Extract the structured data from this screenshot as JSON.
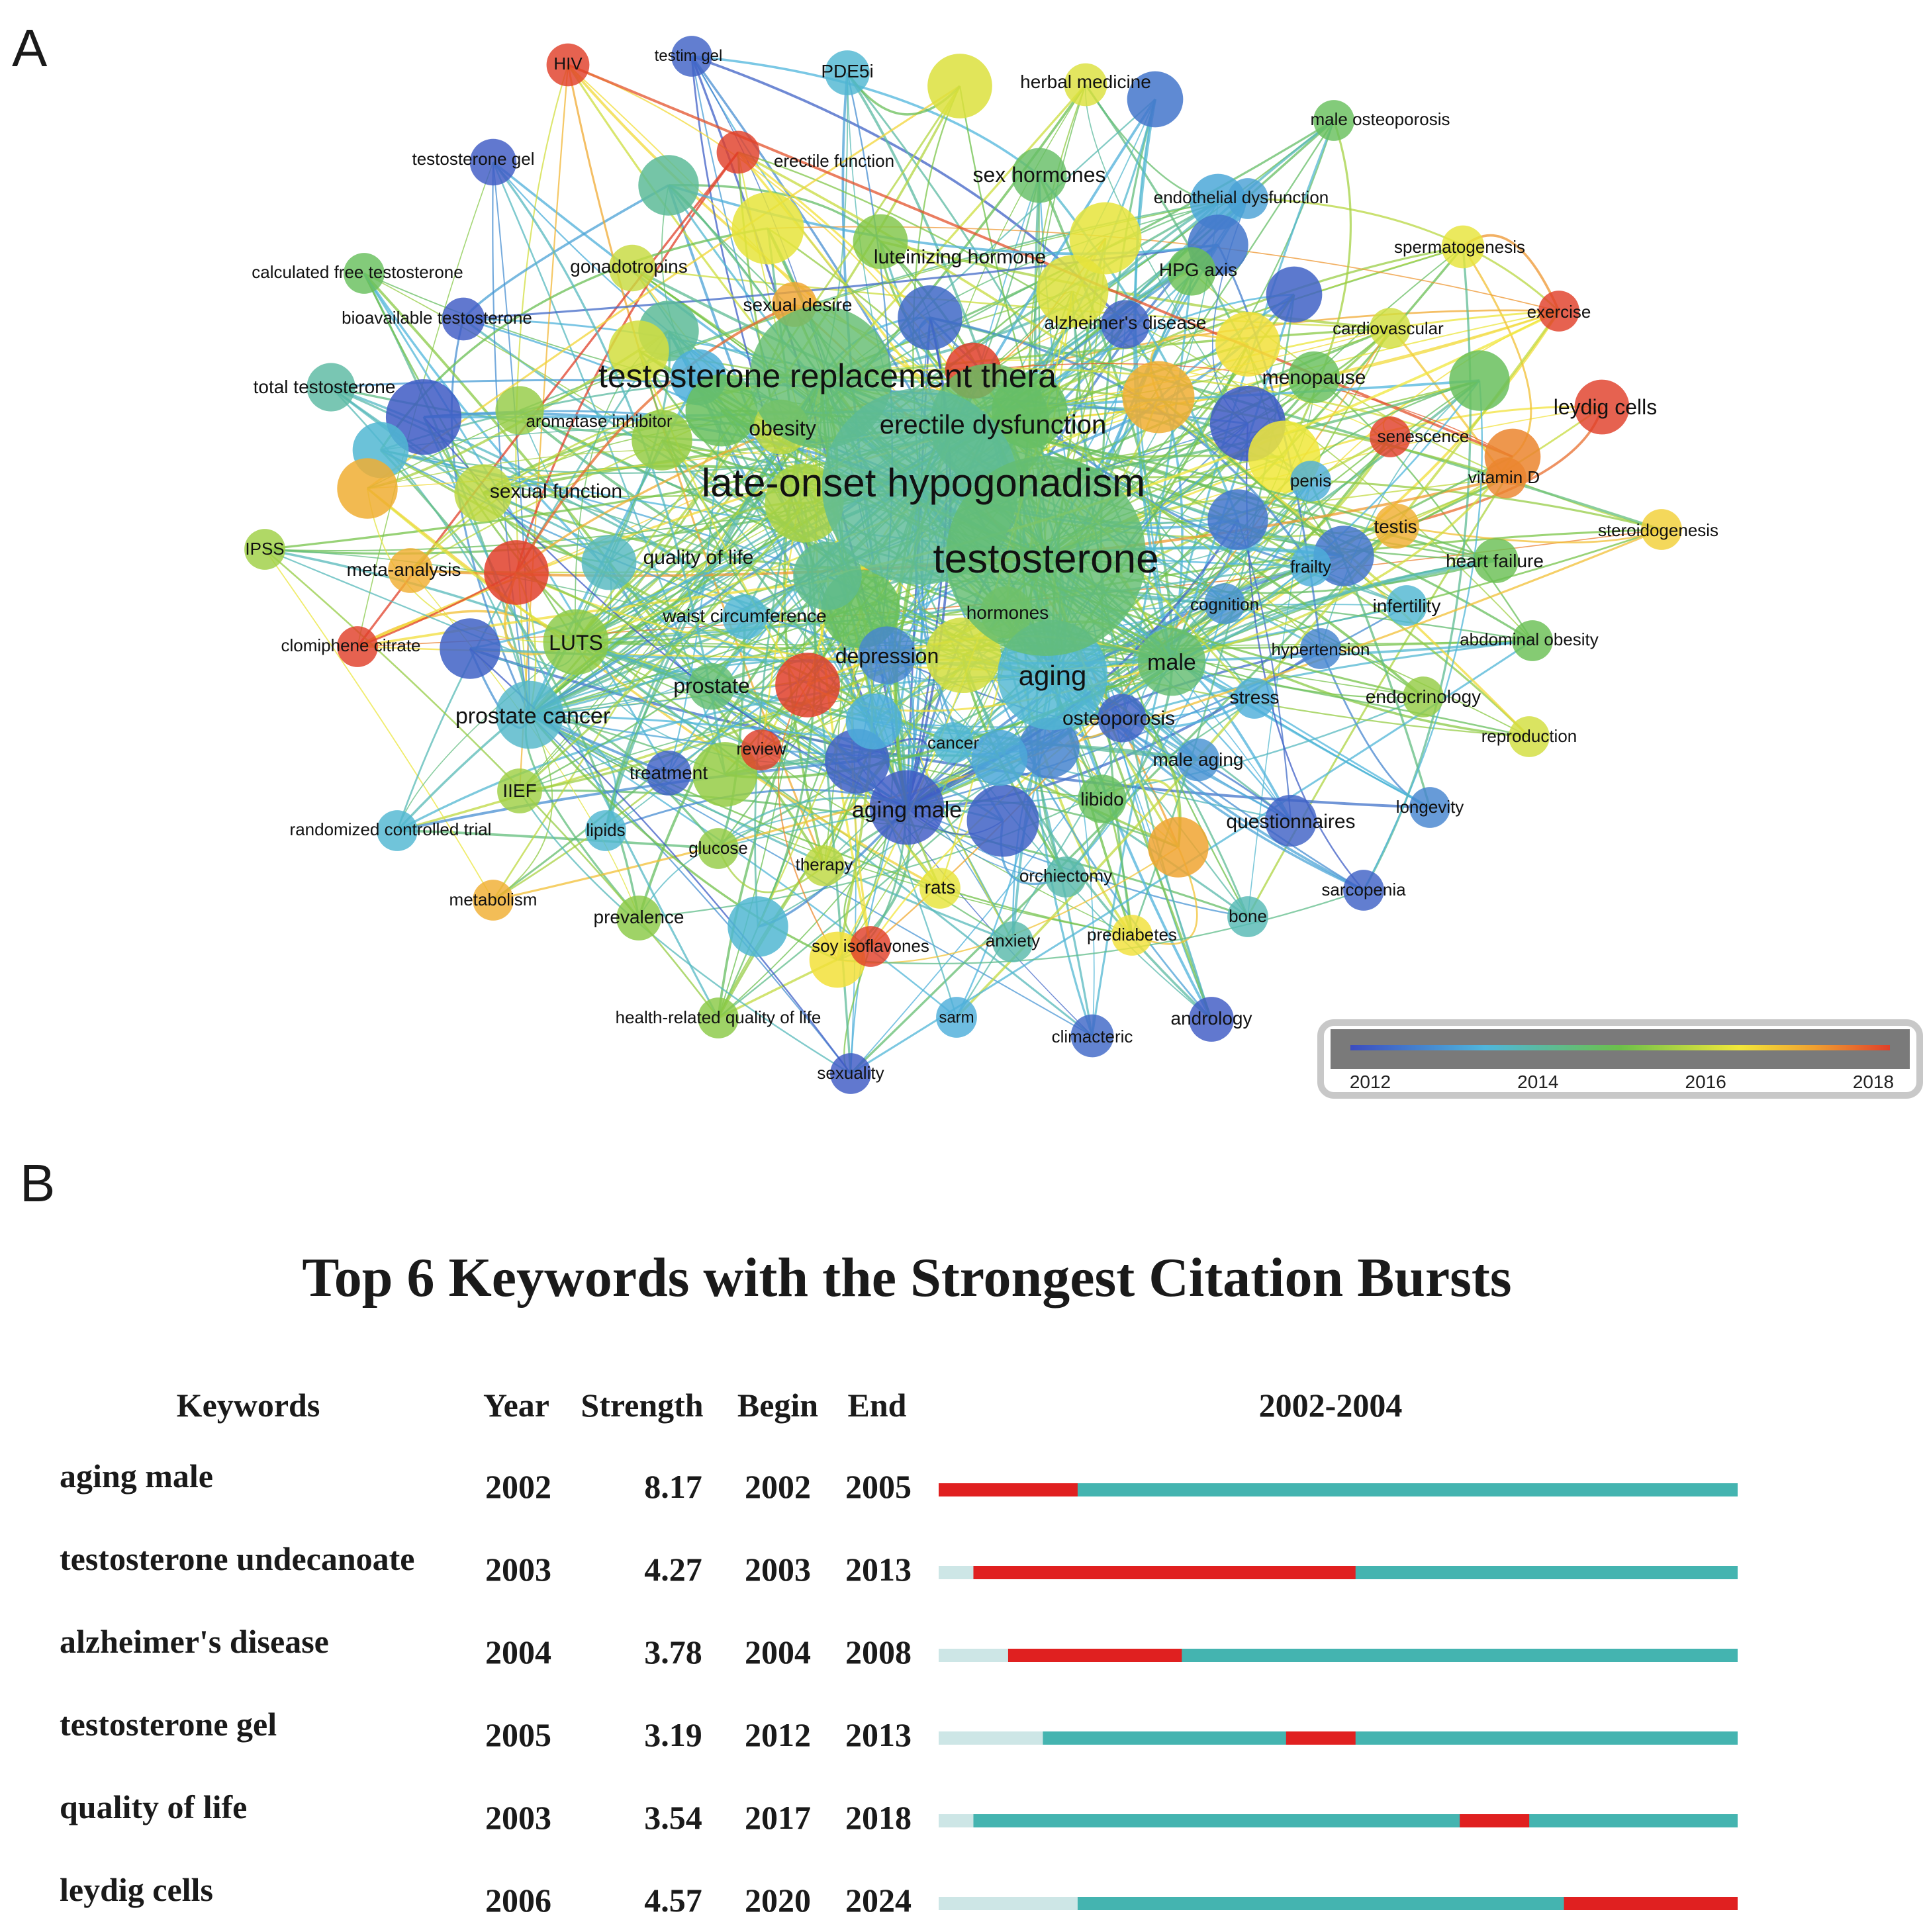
{
  "panels": {
    "a": "A",
    "b": "B"
  },
  "chart_data": [
    {
      "type": "network",
      "overlay": {
        "colorbar": {
          "ticks": [
            "2012",
            "2014",
            "2016",
            "2018"
          ],
          "colors": [
            "#3b4cc0",
            "#4fb6dc",
            "#6cc04a",
            "#f2e83a",
            "#f0a030",
            "#e0402a"
          ]
        }
      },
      "nodes": [
        {
          "label": "testosterone",
          "year": 2014.6,
          "weight": 100
        },
        {
          "label": "late-onset hypogonadism",
          "year": 2014.2,
          "weight": 96
        },
        {
          "label": "testosterone replacement thera",
          "year": 2014.6,
          "weight": 70
        },
        {
          "label": "erectile dysfunction",
          "year": 2014.7,
          "weight": 48
        },
        {
          "label": "aging",
          "year": 2013.6,
          "weight": 40
        },
        {
          "label": "male",
          "year": 2014.6,
          "weight": 26
        },
        {
          "label": "prostate cancer",
          "year": 2013.7,
          "weight": 26
        },
        {
          "label": "LUTS",
          "year": 2015.3,
          "weight": 24
        },
        {
          "label": "aging male",
          "year": 2012.2,
          "weight": 32
        },
        {
          "label": "depression",
          "year": 2012.8,
          "weight": 18
        },
        {
          "label": "obesity",
          "year": 2015.8,
          "weight": 16
        },
        {
          "label": "quality of life",
          "year": 2013.8,
          "weight": 16
        },
        {
          "label": "sexual function",
          "year": 2015.8,
          "weight": 18
        },
        {
          "label": "hormones",
          "year": 2015.5,
          "weight": 14
        },
        {
          "label": "sex hormones",
          "year": 2014.7,
          "weight": 16
        },
        {
          "label": "luteinizing hormone",
          "year": 2015.2,
          "weight": 16
        },
        {
          "label": "menopause",
          "year": 2014.8,
          "weight": 14
        },
        {
          "label": "leydig cells",
          "year": 2018.2,
          "weight": 16
        },
        {
          "label": "HPG axis",
          "year": 2014.9,
          "weight": 12
        },
        {
          "label": "alzheimer's disease",
          "year": 2012.3,
          "weight": 12
        },
        {
          "label": "gonadotropins",
          "year": 2015.9,
          "weight": 11
        },
        {
          "label": "sexual desire",
          "year": 2017.1,
          "weight": 10
        },
        {
          "label": "aromatase inhibitor",
          "year": 2015.4,
          "weight": 12
        },
        {
          "label": "total testosterone",
          "year": 2014.1,
          "weight": 12
        },
        {
          "label": "bioavailable testosterone",
          "year": 2012.2,
          "weight": 9
        },
        {
          "label": "calculated free testosterone",
          "year": 2014.8,
          "weight": 8
        },
        {
          "label": "testosterone gel",
          "year": 2012.2,
          "weight": 11
        },
        {
          "label": "testim gel",
          "year": 2012.3,
          "weight": 8
        },
        {
          "label": "HIV",
          "year": 2018.3,
          "weight": 9
        },
        {
          "label": "PDE5i",
          "year": 2013.6,
          "weight": 10
        },
        {
          "label": "erectile function",
          "year": 2018.2,
          "weight": 9
        },
        {
          "label": "herbal medicine",
          "year": 2016.1,
          "weight": 9
        },
        {
          "label": "male osteoporosis",
          "year": 2014.8,
          "weight": 8
        },
        {
          "label": "endothelial dysfunction",
          "year": 2013.2,
          "weight": 8
        },
        {
          "label": "spermatogenesis",
          "year": 2016.2,
          "weight": 9
        },
        {
          "label": "cardiovascular",
          "year": 2016.0,
          "weight": 8
        },
        {
          "label": "exercise",
          "year": 2018.3,
          "weight": 8
        },
        {
          "label": "senescence",
          "year": 2018.0,
          "weight": 8
        },
        {
          "label": "vitamin D",
          "year": 2017.4,
          "weight": 8
        },
        {
          "label": "penis",
          "year": 2013.4,
          "weight": 8
        },
        {
          "label": "steroidogenesis",
          "year": 2016.6,
          "weight": 8
        },
        {
          "label": "testis",
          "year": 2017.0,
          "weight": 10
        },
        {
          "label": "frailty",
          "year": 2013.4,
          "weight": 8
        },
        {
          "label": "heart failure",
          "year": 2014.9,
          "weight": 10
        },
        {
          "label": "infertility",
          "year": 2013.6,
          "weight": 8
        },
        {
          "label": "cognition",
          "year": 2013.0,
          "weight": 8
        },
        {
          "label": "hypertension",
          "year": 2012.8,
          "weight": 8
        },
        {
          "label": "abdominal obesity",
          "year": 2014.9,
          "weight": 8
        },
        {
          "label": "stress",
          "year": 2013.4,
          "weight": 8
        },
        {
          "label": "endocrinology",
          "year": 2015.4,
          "weight": 8
        },
        {
          "label": "reproduction",
          "year": 2016.0,
          "weight": 8
        },
        {
          "label": "osteoporosis",
          "year": 2012.3,
          "weight": 12
        },
        {
          "label": "male aging",
          "year": 2013.0,
          "weight": 9
        },
        {
          "label": "cancer",
          "year": 2013.6,
          "weight": 8
        },
        {
          "label": "libido",
          "year": 2014.8,
          "weight": 12
        },
        {
          "label": "questionnaires",
          "year": 2012.3,
          "weight": 14
        },
        {
          "label": "longevity",
          "year": 2012.8,
          "weight": 8
        },
        {
          "label": "sarcopenia",
          "year": 2012.3,
          "weight": 8
        },
        {
          "label": "bone",
          "year": 2013.9,
          "weight": 8
        },
        {
          "label": "andrology",
          "year": 2012.2,
          "weight": 10
        },
        {
          "label": "climacteric",
          "year": 2012.4,
          "weight": 9
        },
        {
          "label": "prediabetes",
          "year": 2016.4,
          "weight": 8
        },
        {
          "label": "anxiety",
          "year": 2014.0,
          "weight": 8
        },
        {
          "label": "orchiectomy",
          "year": 2014.0,
          "weight": 8
        },
        {
          "label": "rats",
          "year": 2016.2,
          "weight": 8
        },
        {
          "label": "sarm",
          "year": 2013.4,
          "weight": 8
        },
        {
          "label": "sexuality",
          "year": 2012.2,
          "weight": 8
        },
        {
          "label": "soy isoflavones",
          "year": 2018.1,
          "weight": 8
        },
        {
          "label": "health-related quality of life",
          "year": 2015.3,
          "weight": 8
        },
        {
          "label": "therapy",
          "year": 2015.8,
          "weight": 8
        },
        {
          "label": "glucose",
          "year": 2015.4,
          "weight": 8
        },
        {
          "label": "prevalence",
          "year": 2015.3,
          "weight": 10
        },
        {
          "label": "metabolism",
          "year": 2017.0,
          "weight": 8
        },
        {
          "label": "lipids",
          "year": 2013.6,
          "weight": 8
        },
        {
          "label": "randomized controlled trial",
          "year": 2013.6,
          "weight": 8
        },
        {
          "label": "IIEF",
          "year": 2015.5,
          "weight": 10
        },
        {
          "label": "treatment",
          "year": 2012.3,
          "weight": 10
        },
        {
          "label": "review",
          "year": 2018.2,
          "weight": 8
        },
        {
          "label": "prostate",
          "year": 2014.6,
          "weight": 11
        },
        {
          "label": "waist circumference",
          "year": 2013.6,
          "weight": 10
        },
        {
          "label": "clomiphene citrate",
          "year": 2018.3,
          "weight": 8
        },
        {
          "label": "meta-analysis",
          "year": 2017.0,
          "weight": 10
        },
        {
          "label": "IPSS",
          "year": 2015.5,
          "weight": 8
        }
      ]
    },
    {
      "type": "table",
      "title": "Top 6 Keywords with the Strongest Citation Bursts",
      "columns": [
        "Keywords",
        "Year",
        "Strength",
        "Begin",
        "End",
        "2002-2004"
      ],
      "timeline": {
        "start": 2002,
        "end": 2024
      },
      "rows": [
        {
          "keyword": "aging male",
          "year": "2002",
          "strength": "8.17",
          "begin": "2002",
          "end": "2005"
        },
        {
          "keyword": "testosterone  undecanoate",
          "year": "2003",
          "strength": "4.27",
          "begin": "2003",
          "end": "2013"
        },
        {
          "keyword": "alzheimer's disease",
          "year": "2004",
          "strength": "3.78",
          "begin": "2004",
          "end": "2008"
        },
        {
          "keyword": "testosterone gel",
          "year": "2005",
          "strength": "3.19",
          "begin": "2012",
          "end": "2013"
        },
        {
          "keyword": "quality of life",
          "year": "2003",
          "strength": "3.54",
          "begin": "2017",
          "end": "2018"
        },
        {
          "keyword": "leydig cells",
          "year": "2006",
          "strength": "4.57",
          "begin": "2020",
          "end": "2024"
        }
      ],
      "colors": {
        "burst": "#e02020",
        "active": "#44b4b0",
        "inactive": "#cde6e6"
      }
    }
  ]
}
